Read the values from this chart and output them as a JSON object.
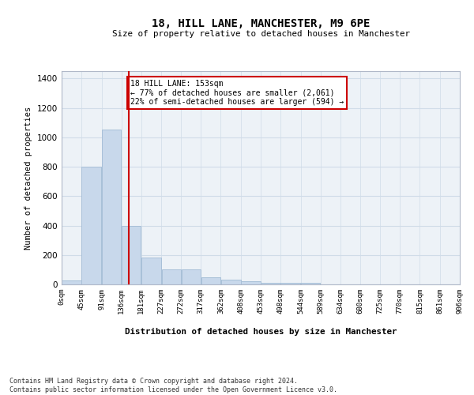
{
  "title": "18, HILL LANE, MANCHESTER, M9 6PE",
  "subtitle": "Size of property relative to detached houses in Manchester",
  "xlabel": "Distribution of detached houses by size in Manchester",
  "ylabel": "Number of detached properties",
  "bar_color": "#c8d8eb",
  "bar_edge_color": "#a8c0d8",
  "grid_color": "#d0dce8",
  "background_color": "#edf2f7",
  "vline_x": 153,
  "vline_color": "#cc0000",
  "annotation_text": "18 HILL LANE: 153sqm\n← 77% of detached houses are smaller (2,061)\n22% of semi-detached houses are larger (594) →",
  "annotation_box_color": "white",
  "annotation_box_edge": "#cc0000",
  "bin_edges": [
    0,
    45,
    91,
    136,
    181,
    227,
    272,
    317,
    362,
    408,
    453,
    498,
    544,
    589,
    634,
    680,
    725,
    770,
    815,
    861,
    906
  ],
  "bar_heights": [
    25,
    800,
    1050,
    400,
    180,
    100,
    100,
    50,
    30,
    20,
    10,
    10,
    10,
    0,
    0,
    0,
    0,
    0,
    0,
    0
  ],
  "ylim": [
    0,
    1450
  ],
  "yticks": [
    0,
    200,
    400,
    600,
    800,
    1000,
    1200,
    1400
  ],
  "footnote": "Contains HM Land Registry data © Crown copyright and database right 2024.\nContains public sector information licensed under the Open Government Licence v3.0."
}
